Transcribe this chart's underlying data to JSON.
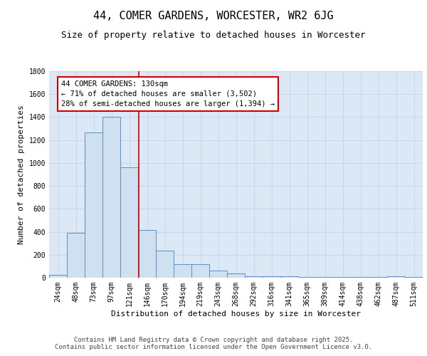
{
  "title": "44, COMER GARDENS, WORCESTER, WR2 6JG",
  "subtitle": "Size of property relative to detached houses in Worcester",
  "xlabel": "Distribution of detached houses by size in Worcester",
  "ylabel": "Number of detached properties",
  "bar_values": [
    25,
    390,
    1265,
    1400,
    960,
    415,
    235,
    120,
    120,
    65,
    40,
    15,
    10,
    10,
    5,
    5,
    5,
    5,
    5,
    10,
    5
  ],
  "bin_labels": [
    "24sqm",
    "48sqm",
    "73sqm",
    "97sqm",
    "121sqm",
    "146sqm",
    "170sqm",
    "194sqm",
    "219sqm",
    "243sqm",
    "268sqm",
    "292sqm",
    "316sqm",
    "341sqm",
    "365sqm",
    "389sqm",
    "414sqm",
    "438sqm",
    "462sqm",
    "487sqm",
    "511sqm"
  ],
  "bar_color": "#cfe0f0",
  "bar_edge_color": "#5b8fc9",
  "vline_x": 4.55,
  "vline_color": "#cc0000",
  "annotation_text": "44 COMER GARDENS: 130sqm\n← 71% of detached houses are smaller (3,502)\n28% of semi-detached houses are larger (1,394) →",
  "annotation_box_color": "#cc0000",
  "ylim": [
    0,
    1800
  ],
  "yticks": [
    0,
    200,
    400,
    600,
    800,
    1000,
    1200,
    1400,
    1600,
    1800
  ],
  "grid_color": "#c8d8e8",
  "background_color": "#dce8f5",
  "footer_text": "Contains HM Land Registry data © Crown copyright and database right 2025.\nContains public sector information licensed under the Open Government Licence v3.0.",
  "title_fontsize": 11,
  "subtitle_fontsize": 9,
  "xlabel_fontsize": 8,
  "ylabel_fontsize": 8,
  "tick_fontsize": 7,
  "annotation_fontsize": 7.5,
  "footer_fontsize": 6.5
}
